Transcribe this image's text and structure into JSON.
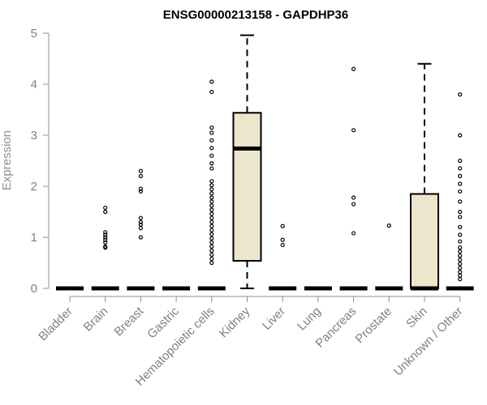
{
  "chart_data": {
    "type": "box",
    "title": "ENSG00000213158 - GAPDHP36",
    "xlabel": "",
    "ylabel": "Expression",
    "ylim": [
      0,
      5
    ],
    "yticks": [
      0,
      1,
      2,
      3,
      4,
      5
    ],
    "box_fill": "#ece6cc",
    "categories": [
      "Bladder",
      "Brain",
      "Breast",
      "Gastric",
      "Hematopoietic cells",
      "Kidney",
      "Liver",
      "Lung",
      "Pancreas",
      "Prostate",
      "Skin",
      "Unknown / Other"
    ],
    "boxes": [
      {
        "category": "Bladder",
        "min": 0,
        "q1": 0,
        "median": 0,
        "q3": 0,
        "max": 0,
        "outliers": []
      },
      {
        "category": "Brain",
        "min": 0,
        "q1": 0,
        "median": 0,
        "q3": 0,
        "max": 0,
        "outliers": [
          0.8,
          0.82,
          0.9,
          0.95,
          1.0,
          1.05,
          1.1,
          1.5,
          1.58
        ]
      },
      {
        "category": "Breast",
        "min": 0,
        "q1": 0,
        "median": 0,
        "q3": 0,
        "max": 0,
        "outliers": [
          1.0,
          1.18,
          1.25,
          1.3,
          1.38,
          1.9,
          1.95,
          2.2,
          2.3
        ]
      },
      {
        "category": "Gastric",
        "min": 0,
        "q1": 0,
        "median": 0,
        "q3": 0,
        "max": 0,
        "outliers": []
      },
      {
        "category": "Hematopoietic cells",
        "min": 0,
        "q1": 0,
        "median": 0,
        "q3": 0,
        "max": 0,
        "outliers": [
          0.5,
          0.58,
          0.66,
          0.74,
          0.82,
          0.9,
          0.98,
          1.06,
          1.14,
          1.22,
          1.3,
          1.38,
          1.46,
          1.54,
          1.62,
          1.7,
          1.78,
          1.86,
          1.94,
          2.02,
          2.1,
          2.35,
          2.45,
          2.6,
          2.75,
          2.9,
          3.05,
          3.15,
          3.85,
          4.05
        ]
      },
      {
        "category": "Kidney",
        "min": 0,
        "q1": 0.54,
        "median": 2.74,
        "q3": 3.44,
        "max": 4.96,
        "outliers": []
      },
      {
        "category": "Liver",
        "min": 0,
        "q1": 0,
        "median": 0,
        "q3": 0,
        "max": 0,
        "outliers": [
          0.85,
          0.95,
          1.22
        ]
      },
      {
        "category": "Lung",
        "min": 0,
        "q1": 0,
        "median": 0,
        "q3": 0,
        "max": 0,
        "outliers": []
      },
      {
        "category": "Pancreas",
        "min": 0,
        "q1": 0,
        "median": 0,
        "q3": 0,
        "max": 0,
        "outliers": [
          1.08,
          1.65,
          1.78,
          3.1,
          4.3
        ]
      },
      {
        "category": "Prostate",
        "min": 0,
        "q1": 0,
        "median": 0,
        "q3": 0,
        "max": 0,
        "outliers": [
          1.23
        ]
      },
      {
        "category": "Skin",
        "min": 0,
        "q1": 0,
        "median": 0,
        "q3": 1.85,
        "max": 4.4,
        "outliers": []
      },
      {
        "category": "Unknown / Other",
        "min": 0,
        "q1": 0,
        "median": 0,
        "q3": 0,
        "max": 0,
        "outliers": [
          0.18,
          0.25,
          0.32,
          0.4,
          0.48,
          0.56,
          0.64,
          0.72,
          0.8,
          0.92,
          1.05,
          1.2,
          1.4,
          1.5,
          1.7,
          1.9,
          2.05,
          2.2,
          2.35,
          2.5,
          3.0,
          3.8
        ]
      }
    ]
  }
}
